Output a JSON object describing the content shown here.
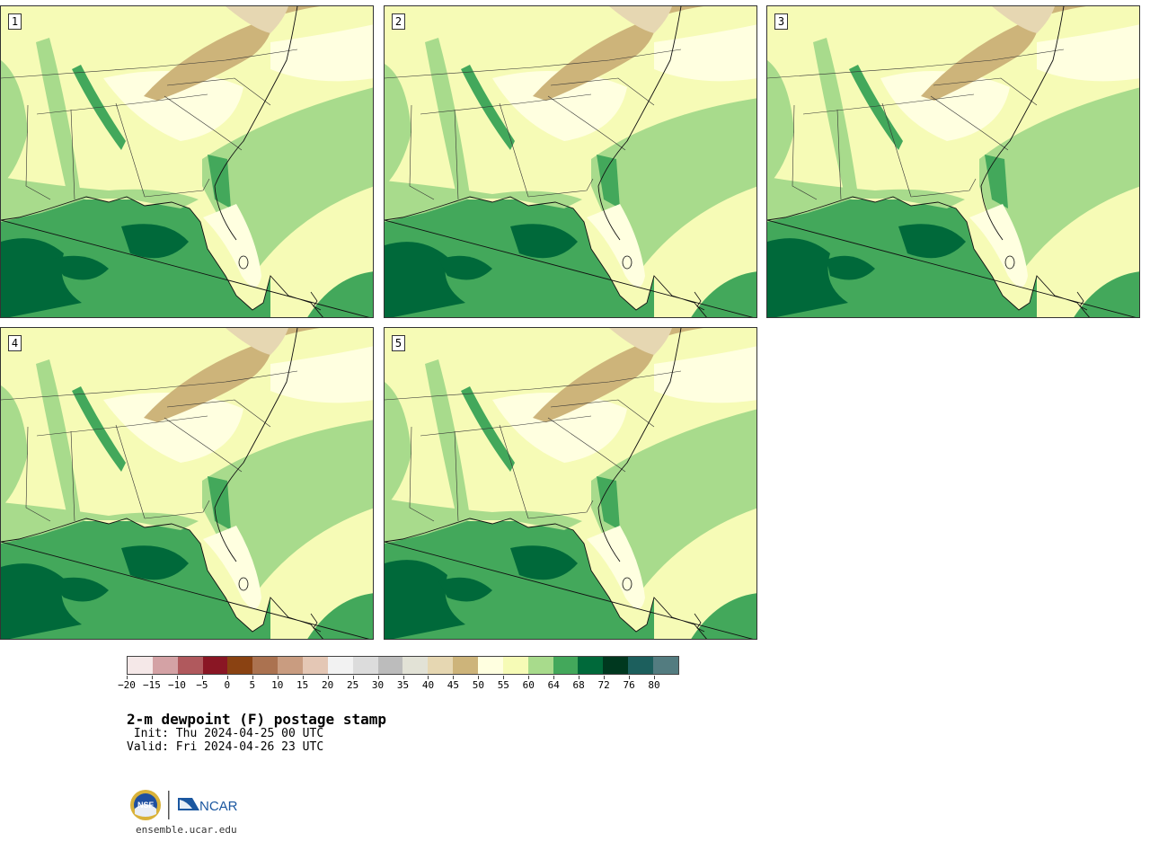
{
  "panels": [
    {
      "label": "1",
      "variant": 0
    },
    {
      "label": "2",
      "variant": 1
    },
    {
      "label": "3",
      "variant": 2
    },
    {
      "label": "4",
      "variant": 3
    },
    {
      "label": "5",
      "variant": 4
    }
  ],
  "colorbar": {
    "colors": [
      "#f5e8e8",
      "#d4a2a5",
      "#b0595d",
      "#8a1624",
      "#8a4212",
      "#ab7250",
      "#c99c80",
      "#e4c7b5",
      "#f2f2f2",
      "#dcdcdc",
      "#bcbcbc",
      "#e2e2d6",
      "#e6d7b2",
      "#cdb47a",
      "#ffffe0",
      "#f6fbb6",
      "#a8db8c",
      "#43a85b",
      "#00693a",
      "#00381f",
      "#1c5f5d",
      "#537c80"
    ],
    "tick_labels": [
      "−20",
      "−15",
      "−10",
      "−5",
      "0",
      "5",
      "10",
      "15",
      "20",
      "25",
      "30",
      "35",
      "40",
      "45",
      "50",
      "55",
      "60",
      "64",
      "68",
      "72",
      "76",
      "80"
    ]
  },
  "title": "2-m dewpoint (F) postage stamp",
  "init_line": " Init: Thu 2024-04-25 00 UTC",
  "valid_line": "Valid: Fri 2024-04-26 23 UTC",
  "logos": {
    "left": "NSF",
    "right": "NCAR"
  },
  "url": "ensemble.ucar.edu"
}
